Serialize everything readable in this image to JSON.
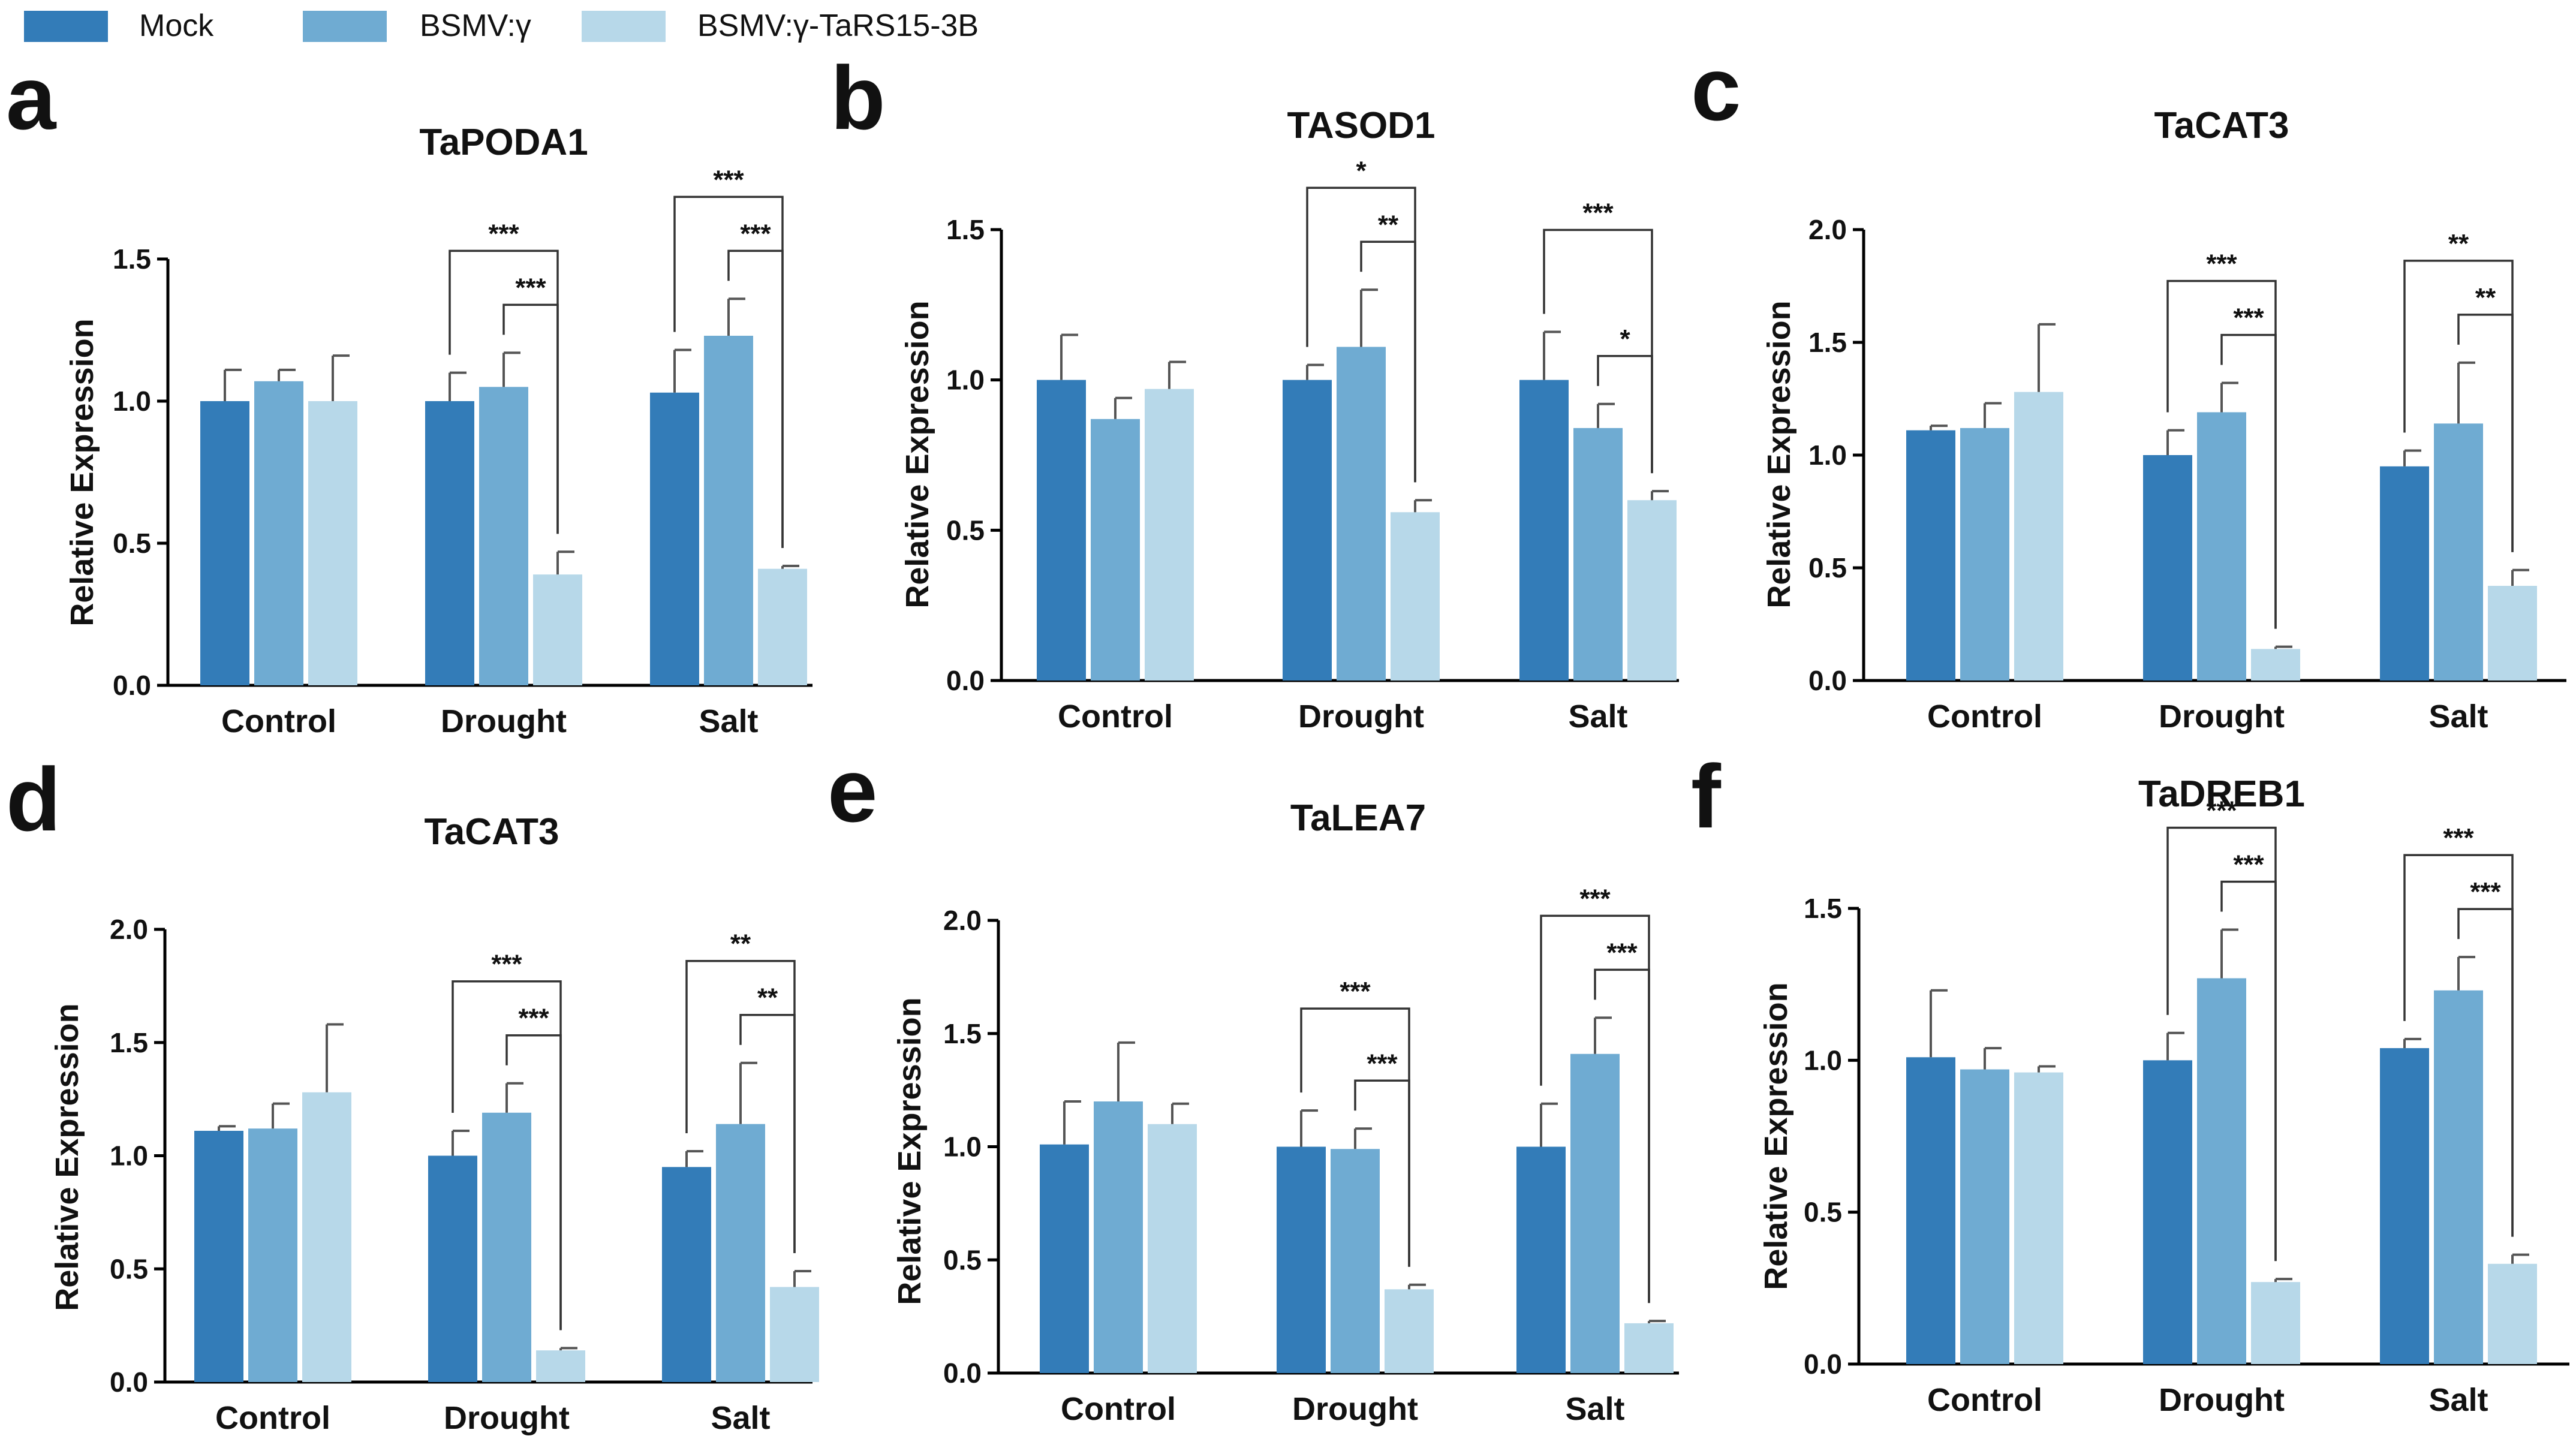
{
  "legend": {
    "items": [
      {
        "label": "Mock",
        "color": "#337cb8"
      },
      {
        "label": "BSMV:γ",
        "color": "#6fabd2"
      },
      {
        "label": "BSMV:γ-TaRS15-3B",
        "color": "#b7d8e9"
      }
    ]
  },
  "chart_data": [
    {
      "panel": "a",
      "type": "bar",
      "title": "TaPODA1",
      "ylabel": "Relative Expression",
      "xlabel": "",
      "categories": [
        "Control",
        "Drought",
        "Salt"
      ],
      "ylim": [
        0,
        1.5
      ],
      "yticks": [
        "0.0",
        "0.5",
        "1.0",
        "1.5"
      ],
      "series": [
        {
          "name": "Mock",
          "values": [
            1.0,
            1.0,
            1.03
          ],
          "errors": [
            0.11,
            0.1,
            0.15
          ]
        },
        {
          "name": "BSMV:γ",
          "values": [
            1.07,
            1.05,
            1.23
          ],
          "errors": [
            0.04,
            0.12,
            0.13
          ]
        },
        {
          "name": "BSMV:γ-TaRS15-3B",
          "values": [
            1.0,
            0.39,
            0.41
          ],
          "errors": [
            0.16,
            0.08,
            0.01
          ]
        }
      ],
      "significance": [
        {
          "category": 1,
          "from": 0,
          "to": 2,
          "label": "***"
        },
        {
          "category": 1,
          "from": 1,
          "to": 2,
          "label": "***"
        },
        {
          "category": 2,
          "from": 0,
          "to": 2,
          "label": "***"
        },
        {
          "category": 2,
          "from": 1,
          "to": 2,
          "label": "***"
        }
      ]
    },
    {
      "panel": "b",
      "type": "bar",
      "title": "TASOD1",
      "ylabel": "Relative Expression",
      "xlabel": "",
      "categories": [
        "Control",
        "Drought",
        "Salt"
      ],
      "ylim": [
        0,
        1.5
      ],
      "yticks": [
        "0.0",
        "0.5",
        "1.0",
        "1.5"
      ],
      "series": [
        {
          "name": "Mock",
          "values": [
            1.0,
            1.0,
            1.0
          ],
          "errors": [
            0.15,
            0.05,
            0.16
          ]
        },
        {
          "name": "BSMV:γ",
          "values": [
            0.87,
            1.11,
            0.84
          ],
          "errors": [
            0.07,
            0.19,
            0.08
          ]
        },
        {
          "name": "BSMV:γ-TaRS15-3B",
          "values": [
            0.97,
            0.56,
            0.6
          ],
          "errors": [
            0.09,
            0.04,
            0.03
          ]
        }
      ],
      "significance": [
        {
          "category": 1,
          "from": 0,
          "to": 2,
          "label": "*"
        },
        {
          "category": 1,
          "from": 1,
          "to": 2,
          "label": "**"
        },
        {
          "category": 2,
          "from": 0,
          "to": 2,
          "label": "***"
        },
        {
          "category": 2,
          "from": 1,
          "to": 2,
          "label": "*"
        }
      ]
    },
    {
      "panel": "c",
      "type": "bar",
      "title": "TaCAT3",
      "ylabel": "Relative Expression",
      "xlabel": "",
      "categories": [
        "Control",
        "Drought",
        "Salt"
      ],
      "ylim": [
        0,
        2.0
      ],
      "yticks": [
        "0.0",
        "0.5",
        "1.0",
        "1.5",
        "2.0"
      ],
      "series": [
        {
          "name": "Mock",
          "values": [
            1.11,
            1.0,
            0.95
          ],
          "errors": [
            0.02,
            0.11,
            0.07
          ]
        },
        {
          "name": "BSMV:γ",
          "values": [
            1.12,
            1.19,
            1.14
          ],
          "errors": [
            0.11,
            0.13,
            0.27
          ]
        },
        {
          "name": "BSMV:γ-TaRS15-3B",
          "values": [
            1.28,
            0.14,
            0.42
          ],
          "errors": [
            0.3,
            0.01,
            0.07
          ]
        }
      ],
      "significance": [
        {
          "category": 1,
          "from": 0,
          "to": 2,
          "label": "***"
        },
        {
          "category": 1,
          "from": 1,
          "to": 2,
          "label": "***"
        },
        {
          "category": 2,
          "from": 0,
          "to": 2,
          "label": "**"
        },
        {
          "category": 2,
          "from": 1,
          "to": 2,
          "label": "**"
        }
      ]
    },
    {
      "panel": "d",
      "type": "bar",
      "title": "TaCAT3",
      "ylabel": "Relative Expression",
      "xlabel": "",
      "categories": [
        "Control",
        "Drought",
        "Salt"
      ],
      "ylim": [
        0,
        2.0
      ],
      "yticks": [
        "0.0",
        "0.5",
        "1.0",
        "1.5",
        "2.0"
      ],
      "series": [
        {
          "name": "Mock",
          "values": [
            1.11,
            1.0,
            0.95
          ],
          "errors": [
            0.02,
            0.11,
            0.07
          ]
        },
        {
          "name": "BSMV:γ",
          "values": [
            1.12,
            1.19,
            1.14
          ],
          "errors": [
            0.11,
            0.13,
            0.27
          ]
        },
        {
          "name": "BSMV:γ-TaRS15-3B",
          "values": [
            1.28,
            0.14,
            0.42
          ],
          "errors": [
            0.3,
            0.01,
            0.07
          ]
        }
      ],
      "significance": [
        {
          "category": 1,
          "from": 0,
          "to": 2,
          "label": "***"
        },
        {
          "category": 1,
          "from": 1,
          "to": 2,
          "label": "***"
        },
        {
          "category": 2,
          "from": 0,
          "to": 2,
          "label": "**"
        },
        {
          "category": 2,
          "from": 1,
          "to": 2,
          "label": "**"
        }
      ]
    },
    {
      "panel": "e",
      "type": "bar",
      "title": "TaLEA7",
      "ylabel": "Relative Expression",
      "xlabel": "",
      "categories": [
        "Control",
        "Drought",
        "Salt"
      ],
      "ylim": [
        0,
        2.0
      ],
      "yticks": [
        "0.0",
        "0.5",
        "1.0",
        "1.5",
        "2.0"
      ],
      "series": [
        {
          "name": "Mock",
          "values": [
            1.01,
            1.0,
            1.0
          ],
          "errors": [
            0.19,
            0.16,
            0.19
          ]
        },
        {
          "name": "BSMV:γ",
          "values": [
            1.2,
            0.99,
            1.41
          ],
          "errors": [
            0.26,
            0.09,
            0.16
          ]
        },
        {
          "name": "BSMV:γ-TaRS15-3B",
          "values": [
            1.1,
            0.37,
            0.22
          ],
          "errors": [
            0.09,
            0.02,
            0.01
          ]
        }
      ],
      "significance": [
        {
          "category": 1,
          "from": 0,
          "to": 2,
          "label": "***"
        },
        {
          "category": 1,
          "from": 1,
          "to": 2,
          "label": "***"
        },
        {
          "category": 2,
          "from": 0,
          "to": 2,
          "label": "***"
        },
        {
          "category": 2,
          "from": 1,
          "to": 2,
          "label": "***"
        }
      ]
    },
    {
      "panel": "f",
      "type": "bar",
      "title": "TaDREB1",
      "ylabel": "Relative Expression",
      "xlabel": "",
      "categories": [
        "Control",
        "Drought",
        "Salt"
      ],
      "ylim": [
        0,
        1.5
      ],
      "yticks": [
        "0.0",
        "0.5",
        "1.0",
        "1.5"
      ],
      "series": [
        {
          "name": "Mock",
          "values": [
            1.01,
            1.0,
            1.04
          ],
          "errors": [
            0.22,
            0.09,
            0.03
          ]
        },
        {
          "name": "BSMV:γ",
          "values": [
            0.97,
            1.27,
            1.23
          ],
          "errors": [
            0.07,
            0.16,
            0.11
          ]
        },
        {
          "name": "BSMV:γ-TaRS15-3B",
          "values": [
            0.96,
            0.27,
            0.33
          ],
          "errors": [
            0.02,
            0.01,
            0.03
          ]
        }
      ],
      "significance": [
        {
          "category": 1,
          "from": 0,
          "to": 2,
          "label": "***"
        },
        {
          "category": 1,
          "from": 1,
          "to": 2,
          "label": "***"
        },
        {
          "category": 2,
          "from": 0,
          "to": 2,
          "label": "***"
        },
        {
          "category": 2,
          "from": 1,
          "to": 2,
          "label": "***"
        }
      ]
    }
  ]
}
